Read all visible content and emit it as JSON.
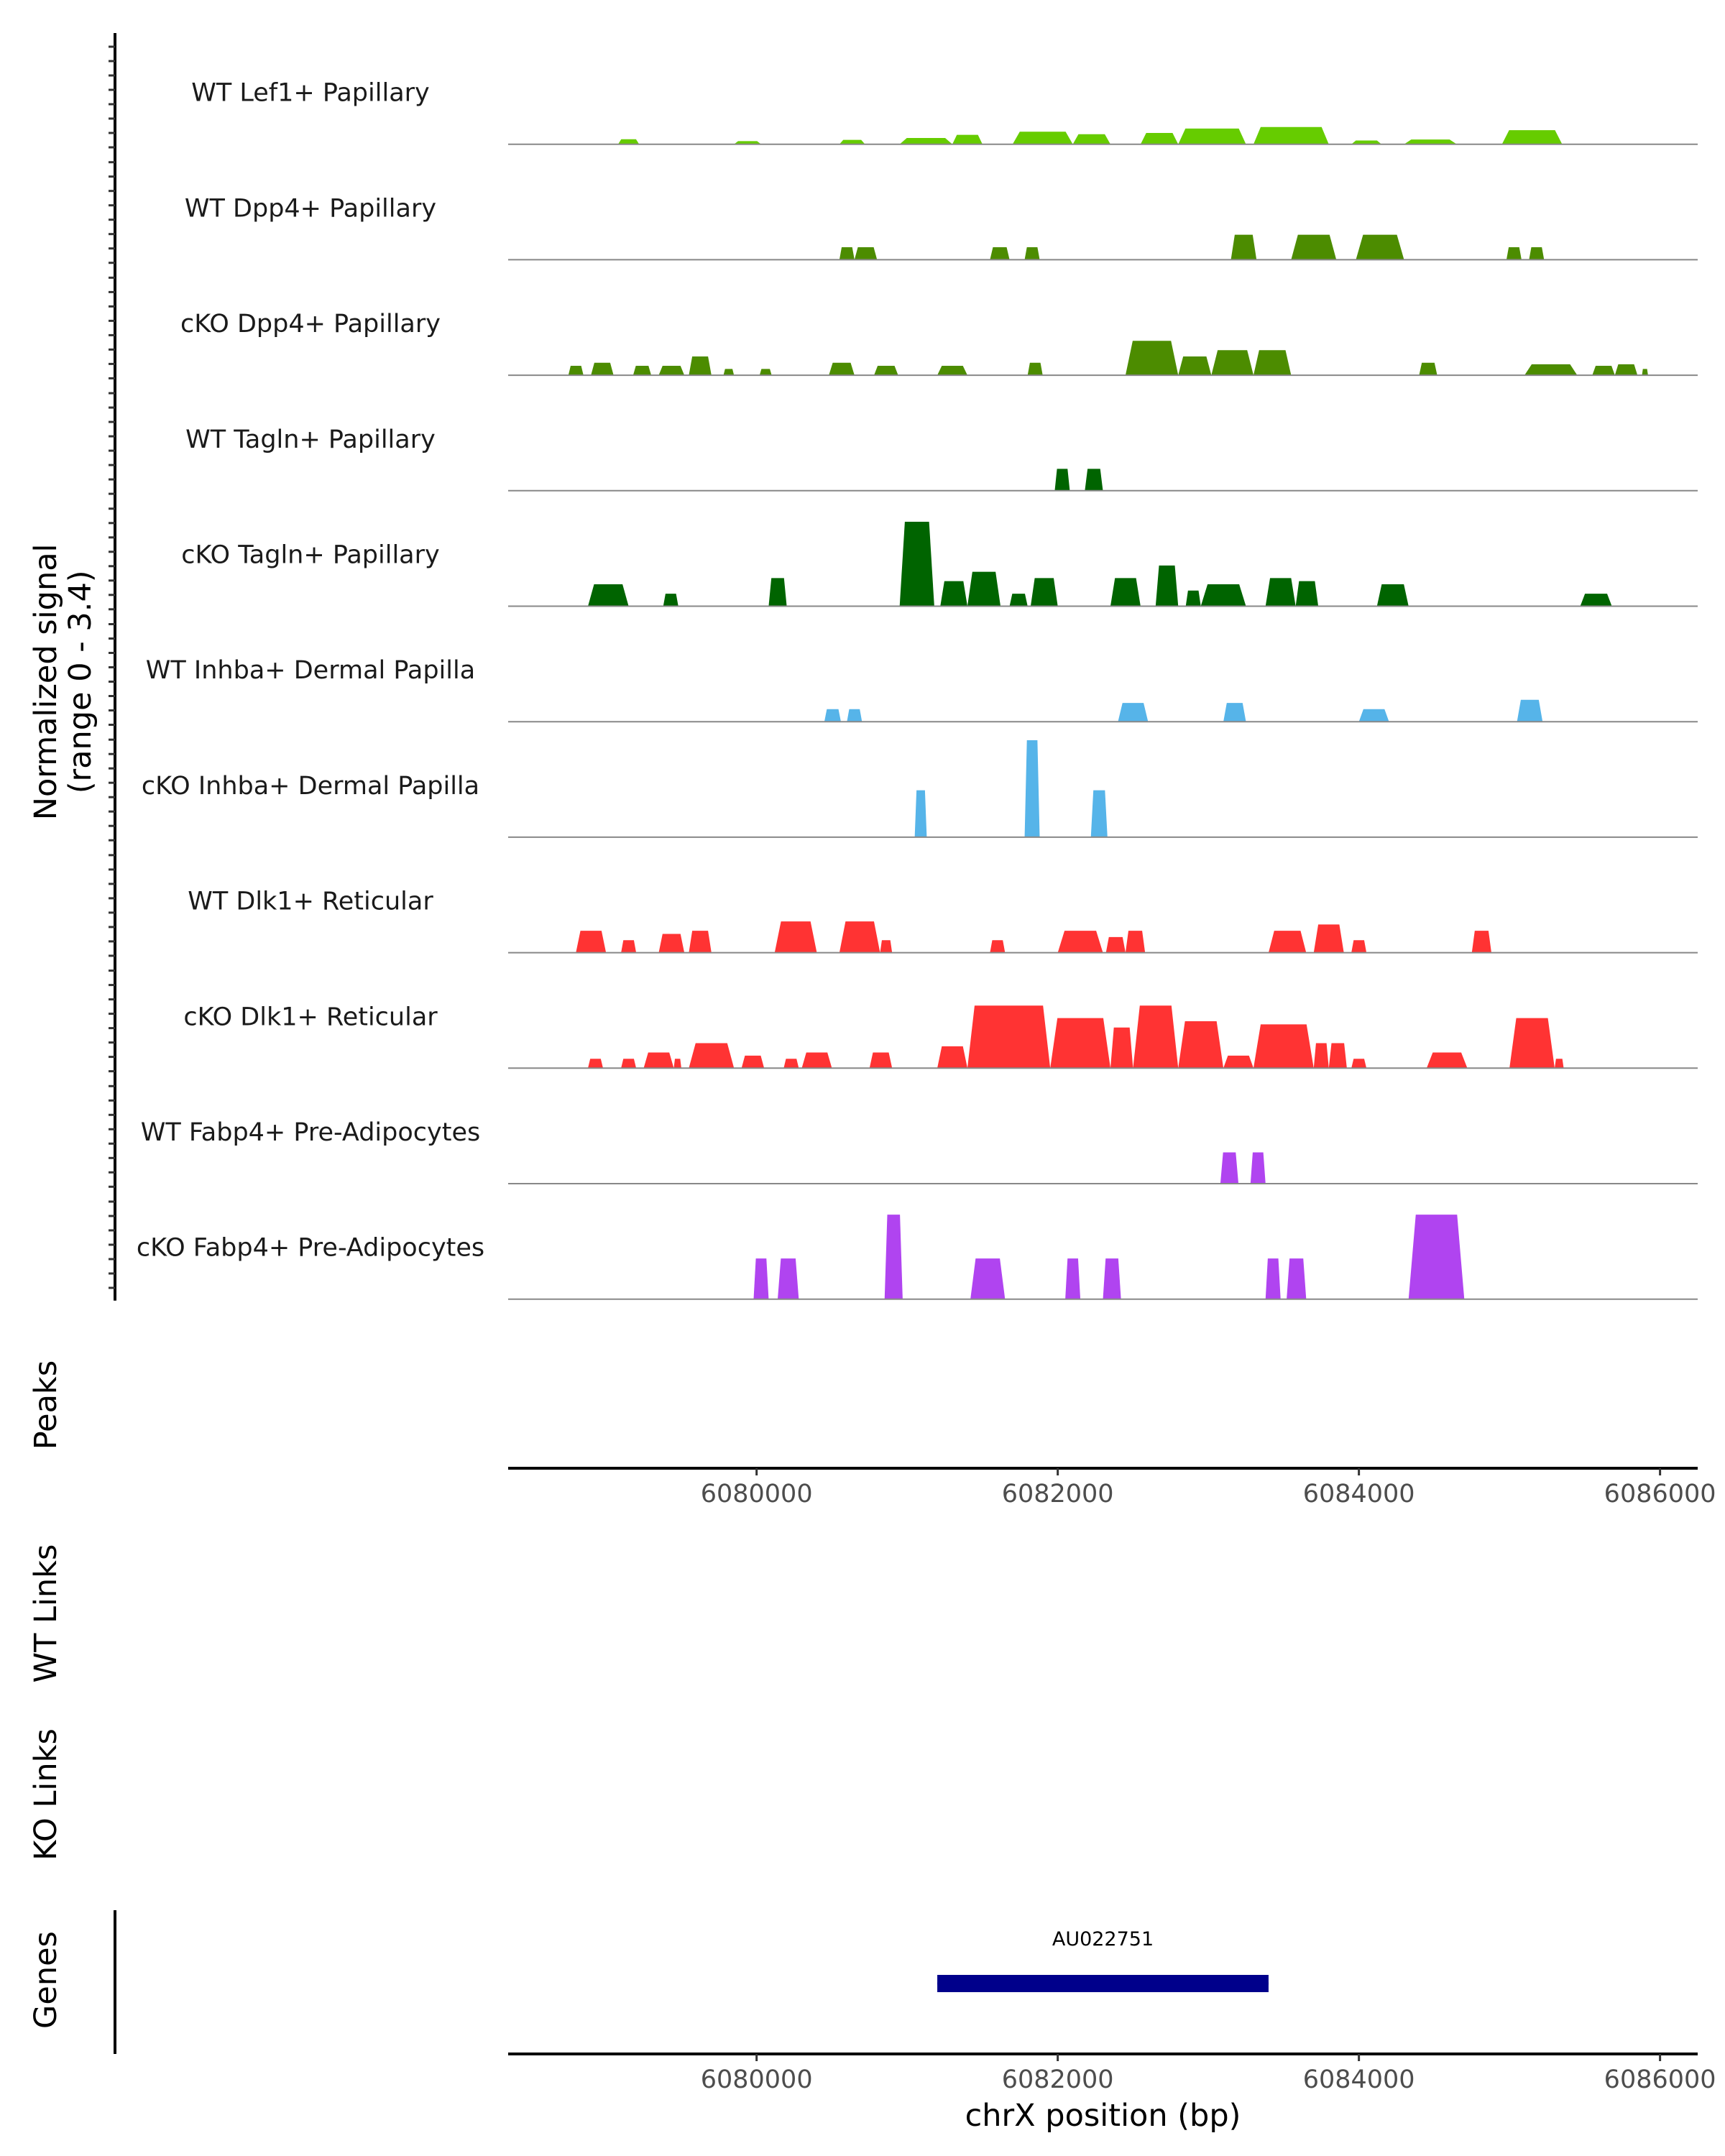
{
  "chart_data": {
    "type": "area",
    "title": "",
    "ylabel": [
      "Normalized signal",
      "(range 0 - 3.4)"
    ],
    "y_range": [
      0,
      3.4
    ],
    "xlabel": "chrX position (bp)",
    "x_range": [
      6078350,
      6086250
    ],
    "x_ticks": [
      6080000,
      6082000,
      6084000,
      6086000
    ],
    "x_tick_labels": [
      "6080000",
      "6082000",
      "6084000",
      "6086000"
    ],
    "panel_labels": {
      "peaks": "Peaks",
      "wt_links": "WT Links",
      "ko_links": "KO Links",
      "genes": "Genes"
    },
    "series": [
      {
        "name": "WT Lef1+ Papillary",
        "color": "#66cc00",
        "regions": [
          [
            6079080,
            6079220,
            0.16
          ],
          [
            6079850,
            6080030,
            0.1
          ],
          [
            6080550,
            6080720,
            0.14
          ],
          [
            6080950,
            6081300,
            0.2
          ],
          [
            6081300,
            6081500,
            0.3
          ],
          [
            6081700,
            6082100,
            0.4
          ],
          [
            6082100,
            6082350,
            0.32
          ],
          [
            6082550,
            6082800,
            0.36
          ],
          [
            6082800,
            6083250,
            0.5
          ],
          [
            6083300,
            6083800,
            0.55
          ],
          [
            6083950,
            6084150,
            0.12
          ],
          [
            6084300,
            6084650,
            0.15
          ],
          [
            6084950,
            6085350,
            0.45
          ]
        ]
      },
      {
        "name": "WT Dpp4+ Papillary",
        "color": "#4c8c00",
        "regions": [
          [
            6080550,
            6080650,
            0.4
          ],
          [
            6080650,
            6080800,
            0.4
          ],
          [
            6081550,
            6081680,
            0.4
          ],
          [
            6081780,
            6081880,
            0.4
          ],
          [
            6083150,
            6083320,
            0.8
          ],
          [
            6083550,
            6083850,
            0.8
          ],
          [
            6083980,
            6084300,
            0.8
          ],
          [
            6084980,
            6085080,
            0.4
          ],
          [
            6085130,
            6085230,
            0.4
          ]
        ]
      },
      {
        "name": "cKO Dpp4+ Papillary",
        "color": "#4c8c00",
        "regions": [
          [
            6078750,
            6078850,
            0.3
          ],
          [
            6078900,
            6079050,
            0.4
          ],
          [
            6079180,
            6079300,
            0.3
          ],
          [
            6079350,
            6079520,
            0.3
          ],
          [
            6079550,
            6079700,
            0.6
          ],
          [
            6079780,
            6079850,
            0.2
          ],
          [
            6080020,
            6080100,
            0.2
          ],
          [
            6080480,
            6080650,
            0.4
          ],
          [
            6080780,
            6080940,
            0.3
          ],
          [
            6081200,
            6081400,
            0.3
          ],
          [
            6081800,
            6081900,
            0.4
          ],
          [
            6082450,
            6082800,
            1.1
          ],
          [
            6082800,
            6083020,
            0.6
          ],
          [
            6083020,
            6083300,
            0.8
          ],
          [
            6083300,
            6083550,
            0.8
          ],
          [
            6084400,
            6084520,
            0.4
          ],
          [
            6085100,
            6085450,
            0.35
          ],
          [
            6085550,
            6085700,
            0.3
          ],
          [
            6085700,
            6085850,
            0.35
          ],
          [
            6085880,
            6085920,
            0.2
          ]
        ]
      },
      {
        "name": "WT Tagln+ Papillary",
        "color": "#006400",
        "regions": [
          [
            6081980,
            6082080,
            0.7
          ],
          [
            6082180,
            6082300,
            0.7
          ]
        ]
      },
      {
        "name": "cKO Tagln+ Papillary",
        "color": "#006400",
        "regions": [
          [
            6078880,
            6079150,
            0.7
          ],
          [
            6079380,
            6079480,
            0.4
          ],
          [
            6080080,
            6080200,
            0.9
          ],
          [
            6080950,
            6081180,
            2.7
          ],
          [
            6081220,
            6081400,
            0.8
          ],
          [
            6081400,
            6081620,
            1.1
          ],
          [
            6081680,
            6081800,
            0.4
          ],
          [
            6081820,
            6082000,
            0.9
          ],
          [
            6082350,
            6082550,
            0.9
          ],
          [
            6082650,
            6082800,
            1.3
          ],
          [
            6082850,
            6082950,
            0.5
          ],
          [
            6082950,
            6083250,
            0.7
          ],
          [
            6083380,
            6083580,
            0.9
          ],
          [
            6083580,
            6083730,
            0.8
          ],
          [
            6084120,
            6084330,
            0.7
          ],
          [
            6085470,
            6085680,
            0.4
          ]
        ]
      },
      {
        "name": "WT Inhba+ Dermal Papilla",
        "color": "#56b4e9",
        "regions": [
          [
            6080450,
            6080560,
            0.4
          ],
          [
            6080600,
            6080700,
            0.4
          ],
          [
            6082400,
            6082600,
            0.6
          ],
          [
            6083100,
            6083250,
            0.6
          ],
          [
            6084000,
            6084200,
            0.4
          ],
          [
            6085050,
            6085220,
            0.7
          ]
        ]
      },
      {
        "name": "cKO Inhba+ Dermal Papilla",
        "color": "#56b4e9",
        "regions": [
          [
            6081050,
            6081130,
            1.5
          ],
          [
            6081780,
            6081880,
            3.1
          ],
          [
            6082220,
            6082330,
            1.5
          ]
        ]
      },
      {
        "name": "WT Dlk1+ Reticular",
        "color": "#ff3333",
        "regions": [
          [
            6078800,
            6079000,
            0.7
          ],
          [
            6079100,
            6079200,
            0.4
          ],
          [
            6079350,
            6079520,
            0.6
          ],
          [
            6079550,
            6079700,
            0.7
          ],
          [
            6080120,
            6080400,
            1.0
          ],
          [
            6080550,
            6080820,
            1.0
          ],
          [
            6080820,
            6080900,
            0.4
          ],
          [
            6081550,
            6081650,
            0.4
          ],
          [
            6082000,
            6082300,
            0.7
          ],
          [
            6082320,
            6082450,
            0.5
          ],
          [
            6082450,
            6082580,
            0.7
          ],
          [
            6083400,
            6083650,
            0.7
          ],
          [
            6083700,
            6083900,
            0.9
          ],
          [
            6083950,
            6084050,
            0.4
          ],
          [
            6084750,
            6084880,
            0.7
          ]
        ]
      },
      {
        "name": "cKO Dlk1+ Reticular",
        "color": "#ff3333",
        "regions": [
          [
            6078880,
            6078980,
            0.3
          ],
          [
            6079100,
            6079200,
            0.3
          ],
          [
            6079250,
            6079450,
            0.5
          ],
          [
            6079450,
            6079500,
            0.3
          ],
          [
            6079550,
            6079850,
            0.8
          ],
          [
            6079900,
            6080050,
            0.4
          ],
          [
            6080180,
            6080280,
            0.3
          ],
          [
            6080300,
            6080500,
            0.5
          ],
          [
            6080750,
            6080900,
            0.5
          ],
          [
            6081200,
            6081400,
            0.7
          ],
          [
            6081400,
            6081950,
            2.0
          ],
          [
            6081950,
            6082350,
            1.6
          ],
          [
            6082350,
            6082500,
            1.3
          ],
          [
            6082500,
            6082800,
            2.0
          ],
          [
            6082800,
            6083100,
            1.5
          ],
          [
            6083100,
            6083300,
            0.4
          ],
          [
            6083300,
            6083700,
            1.4
          ],
          [
            6083700,
            6083800,
            0.8
          ],
          [
            6083800,
            6083920,
            0.8
          ],
          [
            6083950,
            6084050,
            0.3
          ],
          [
            6084450,
            6084720,
            0.5
          ],
          [
            6085000,
            6085300,
            1.6
          ],
          [
            6085300,
            6085360,
            0.3
          ]
        ]
      },
      {
        "name": "WT Fabp4+ Pre-Adipocytes",
        "color": "#b044f0",
        "regions": [
          [
            6083080,
            6083200,
            1.0
          ],
          [
            6083280,
            6083380,
            1.0
          ]
        ]
      },
      {
        "name": "cKO Fabp4+ Pre-Adipocytes",
        "color": "#b044f0",
        "regions": [
          [
            6079980,
            6080080,
            1.3
          ],
          [
            6080140,
            6080280,
            1.3
          ],
          [
            6080850,
            6080970,
            2.7
          ],
          [
            6081420,
            6081650,
            1.3
          ],
          [
            6082050,
            6082150,
            1.3
          ],
          [
            6082300,
            6082420,
            1.3
          ],
          [
            6083380,
            6083480,
            1.3
          ],
          [
            6083520,
            6083650,
            1.3
          ],
          [
            6084330,
            6084700,
            2.7
          ]
        ]
      }
    ],
    "genes": [
      {
        "name": "AU022751",
        "start": 6081200,
        "end": 6083400,
        "color": "#00008b"
      }
    ]
  }
}
